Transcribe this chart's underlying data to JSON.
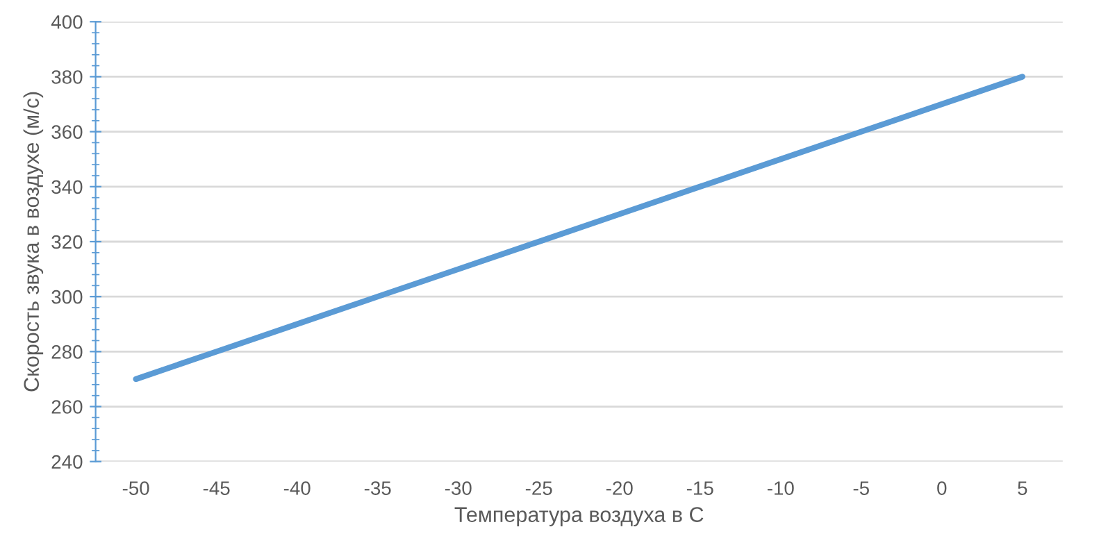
{
  "chart_data": {
    "type": "line",
    "xlabel": "Температура воздуха в С",
    "ylabel": "Скорость звука в воздухе (м/с)",
    "categories": [
      "-50",
      "-45",
      "-40",
      "-35",
      "-30",
      "-25",
      "-20",
      "-15",
      "-10",
      "-5",
      "0",
      "5"
    ],
    "series": [
      {
        "color": "#5b9bd5",
        "values": [
          270,
          280,
          290,
          300,
          310,
          320,
          330,
          340,
          350,
          360,
          370,
          380
        ]
      }
    ],
    "ylim": [
      240,
      400
    ],
    "yticks": [
      240,
      260,
      280,
      300,
      320,
      340,
      360,
      380,
      400
    ],
    "grid": "y",
    "legend": false,
    "marker": "none",
    "line_style": "solid"
  }
}
